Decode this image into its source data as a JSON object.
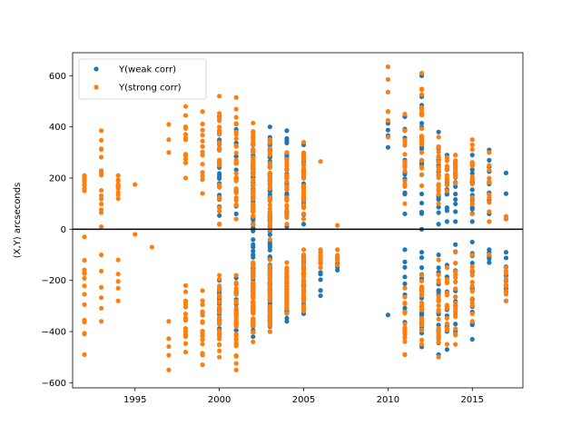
{
  "chart_data": {
    "type": "scatter",
    "title": "",
    "xlabel": "",
    "ylabel": "(X,Y) arcseconds",
    "xlim": [
      1991.3,
      2018.0
    ],
    "ylim": [
      -620,
      690
    ],
    "xticks": [
      1995,
      2000,
      2005,
      2010,
      2015
    ],
    "yticks": [
      -600,
      -400,
      -200,
      0,
      200,
      400,
      600
    ],
    "grid": false,
    "legend_position": "top-left",
    "reference_line": {
      "y": 0,
      "color": "#000000"
    },
    "series": [
      {
        "name": "Y(weak corr)",
        "color": "#1f77b4",
        "clusters": [
          {
            "x": 2000,
            "pos": [
              20,
              440,
              26
            ],
            "neg": [
              -200,
              -410,
              22
            ]
          },
          {
            "x": 2001,
            "pos": [
              60,
              390,
              12
            ],
            "neg": [
              -190,
              -430,
              12
            ]
          },
          {
            "x": 2002,
            "pos": [
              -60,
              360,
              40
            ],
            "neg": [
              -70,
              -420,
              40
            ]
          },
          {
            "x": 2003,
            "pos": [
              -50,
              400,
              40
            ],
            "neg": [
              -60,
              -400,
              40
            ]
          },
          {
            "x": 2004,
            "pos": [
              10,
              385,
              25
            ],
            "neg": [
              -170,
              -360,
              25
            ]
          },
          {
            "x": 2005,
            "pos": [
              20,
              330,
              25
            ],
            "neg": [
              -110,
              -330,
              25
            ]
          },
          {
            "x": 2006,
            "pos": [],
            "neg": [
              -90,
              -260,
              8
            ]
          },
          {
            "x": 2007,
            "pos": [],
            "neg": [
              -110,
              -160,
              6
            ]
          },
          {
            "x": 2010,
            "pos": [
              320,
              460,
              5
            ],
            "neg": [
              -335,
              -335,
              1
            ]
          },
          {
            "x": 2011,
            "pos": [
              60,
              440,
              12
            ],
            "neg": [
              -80,
              -490,
              12
            ]
          },
          {
            "x": 2012,
            "pos": [
              0,
              600,
              18
            ],
            "neg": [
              -90,
              -460,
              18
            ]
          },
          {
            "x": 2013,
            "pos": [
              20,
              380,
              16
            ],
            "neg": [
              -100,
              -490,
              16
            ]
          },
          {
            "x": 2013.5,
            "pos": [
              30,
              290,
              10
            ],
            "neg": [
              -140,
              -470,
              10
            ]
          },
          {
            "x": 2014,
            "pos": [
              30,
              290,
              12
            ],
            "neg": [
              -60,
              -400,
              12
            ]
          },
          {
            "x": 2015,
            "pos": [
              30,
              290,
              14
            ],
            "neg": [
              -50,
              -430,
              14
            ]
          },
          {
            "x": 2016,
            "pos": [
              60,
              310,
              10
            ],
            "neg": [
              -80,
              -130,
              6
            ]
          },
          {
            "x": 2017,
            "pos": [
              40,
              220,
              3
            ],
            "neg": [
              -90,
              -280,
              10
            ]
          }
        ]
      },
      {
        "name": "Y(strong corr)",
        "color": "#ff7f0e",
        "clusters": [
          {
            "x": 1992,
            "pos": [
              150,
              210,
              8
            ],
            "neg": [
              -30,
              -490,
              14
            ]
          },
          {
            "x": 1993,
            "pos": [
              10,
              385,
              16
            ],
            "neg": [
              -100,
              -360,
              6
            ]
          },
          {
            "x": 1994,
            "pos": [
              120,
              210,
              10
            ],
            "neg": [
              -120,
              -280,
              5
            ]
          },
          {
            "x": 1995,
            "pos": [
              175,
              175,
              1
            ],
            "neg": [
              -20,
              -20,
              1
            ]
          },
          {
            "x": 1996,
            "pos": [],
            "neg": [
              -70,
              -70,
              1
            ]
          },
          {
            "x": 1997,
            "pos": [
              300,
              410,
              3
            ],
            "neg": [
              -360,
              -550,
              5
            ]
          },
          {
            "x": 1998,
            "pos": [
              200,
              480,
              12
            ],
            "neg": [
              -220,
              -480,
              16
            ]
          },
          {
            "x": 1999,
            "pos": [
              140,
              460,
              14
            ],
            "neg": [
              -240,
              -530,
              18
            ]
          },
          {
            "x": 2000,
            "pos": [
              20,
              520,
              30
            ],
            "neg": [
              -180,
              -500,
              30
            ]
          },
          {
            "x": 2001,
            "pos": [
              40,
              515,
              26
            ],
            "neg": [
              -180,
              -550,
              30
            ]
          },
          {
            "x": 2002,
            "pos": [
              20,
              415,
              40
            ],
            "neg": [
              -130,
              -440,
              50
            ]
          },
          {
            "x": 2003,
            "pos": [
              -40,
              350,
              40
            ],
            "neg": [
              -120,
              -400,
              50
            ]
          },
          {
            "x": 2004,
            "pos": [
              20,
              300,
              30
            ],
            "neg": [
              -130,
              -330,
              40
            ]
          },
          {
            "x": 2005,
            "pos": [
              40,
              340,
              30
            ],
            "neg": [
              -80,
              -320,
              30
            ]
          },
          {
            "x": 2006,
            "pos": [
              265,
              265,
              1
            ],
            "neg": [
              -80,
              -150,
              8
            ]
          },
          {
            "x": 2007,
            "pos": [
              15,
              15,
              1
            ],
            "neg": [
              -80,
              -140,
              5
            ]
          },
          {
            "x": 2010,
            "pos": [
              360,
              635,
              6
            ],
            "neg": []
          },
          {
            "x": 2011,
            "pos": [
              100,
              450,
              16
            ],
            "neg": [
              -230,
              -490,
              16
            ]
          },
          {
            "x": 2012,
            "pos": [
              170,
              610,
              22
            ],
            "neg": [
              -180,
              -450,
              20
            ]
          },
          {
            "x": 2013,
            "pos": [
              100,
              360,
              18
            ],
            "neg": [
              -120,
              -500,
              22
            ]
          },
          {
            "x": 2013.5,
            "pos": [
              150,
              280,
              12
            ],
            "neg": [
              -150,
              -450,
              14
            ]
          },
          {
            "x": 2014,
            "pos": [
              180,
              290,
              14
            ],
            "neg": [
              -90,
              -450,
              20
            ]
          },
          {
            "x": 2015,
            "pos": [
              60,
              350,
              14
            ],
            "neg": [
              -100,
              -360,
              14
            ]
          },
          {
            "x": 2016,
            "pos": [
              30,
              300,
              10
            ],
            "neg": [
              -100,
              -100,
              1
            ]
          },
          {
            "x": 2017,
            "pos": [
              40,
              50,
              2
            ],
            "neg": [
              -150,
              -280,
              12
            ]
          }
        ]
      }
    ]
  }
}
